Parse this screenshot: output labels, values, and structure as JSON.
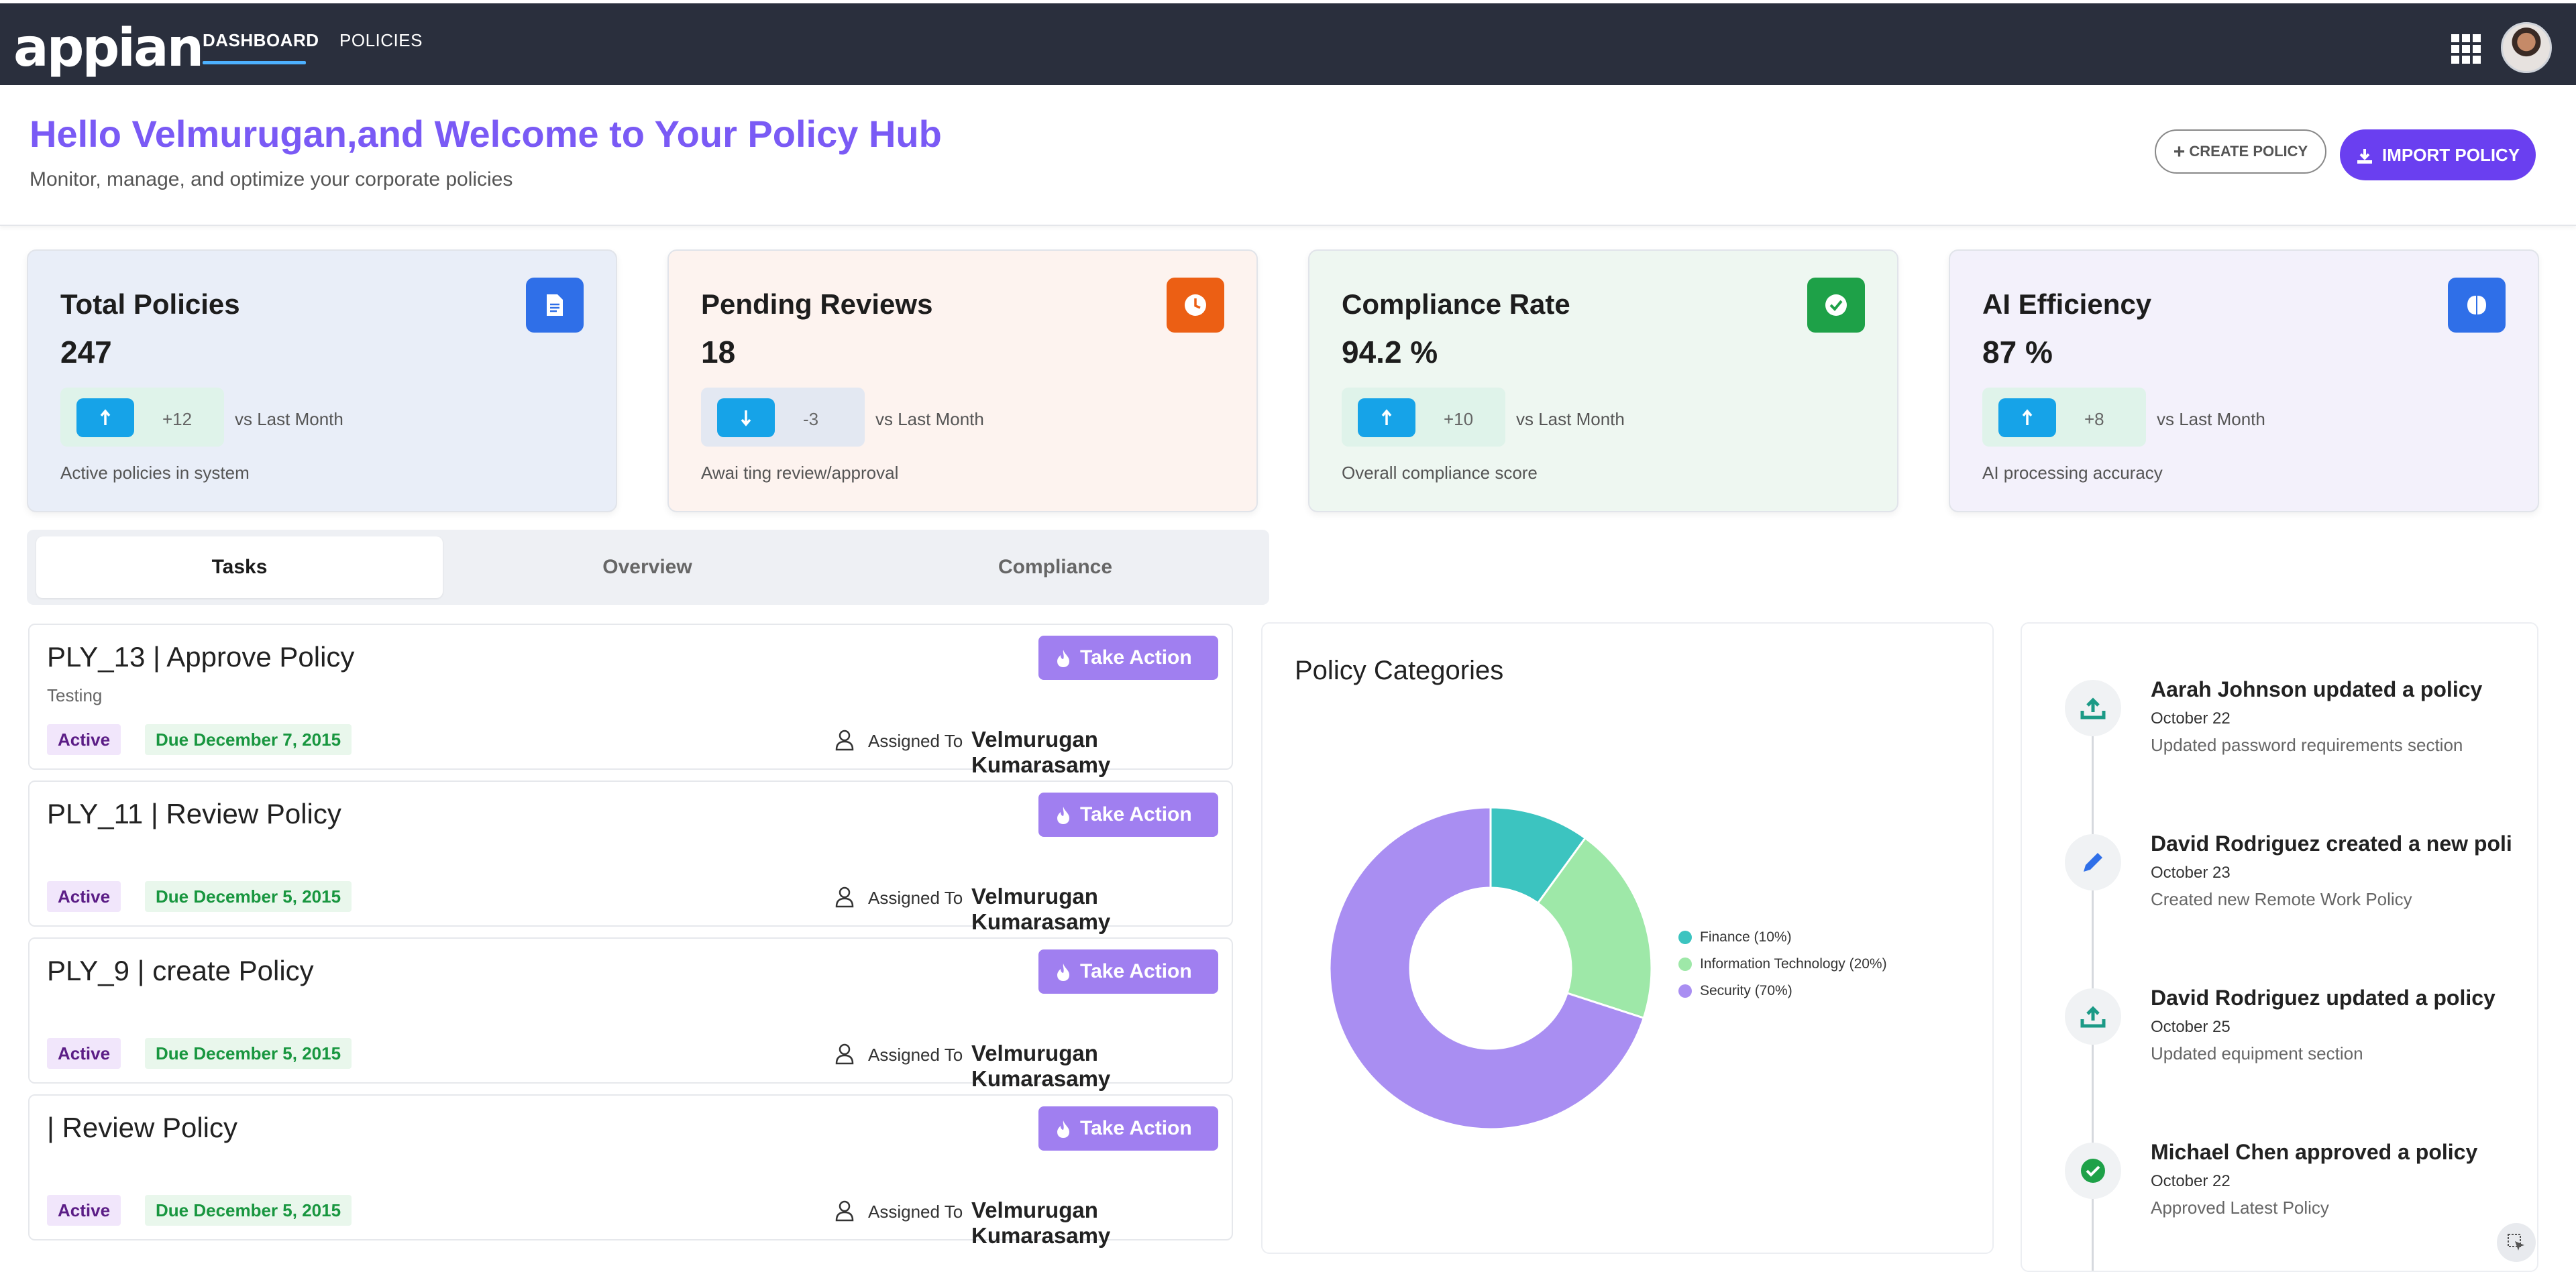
{
  "app": {
    "logo": "appian",
    "nav": [
      {
        "label": "DASHBOARD",
        "active": true
      },
      {
        "label": "POLICIES",
        "active": false
      }
    ],
    "icons": {
      "apps": "grid-icon",
      "avatar": "user-avatar"
    }
  },
  "header": {
    "greeting": "Hello Velmurugan,and Welcome to Your Policy Hub",
    "subtitle": "Monitor, manage, and optimize your corporate policies",
    "create_label": "CREATE POLICY",
    "import_label": "IMPORT POLICY"
  },
  "stats": [
    {
      "title": "Total Policies",
      "value": "247",
      "delta": "+12",
      "trend": "up",
      "vs": "vs Last Month",
      "desc": "Active policies in system",
      "icon": "document-icon",
      "icon_color": "#2f6fe8",
      "bg": "#e9eef8",
      "trend_bg": "#dff3ea"
    },
    {
      "title": "Pending Reviews",
      "value": "18",
      "delta": "-3",
      "trend": "down",
      "vs": "vs Last Month",
      "desc": "Awai ting review/approval",
      "icon": "clock-icon",
      "icon_color": "#ec5f14",
      "bg": "#fdf3ef",
      "trend_bg": "#e3e8f2"
    },
    {
      "title": "Compliance Rate",
      "value": "94.2 %",
      "delta": "+10",
      "trend": "up",
      "vs": "vs Last Month",
      "desc": "Overall compliance score",
      "icon": "check-circle-icon",
      "icon_color": "#1ea148",
      "bg": "#eef7f1",
      "trend_bg": "#dff3ea"
    },
    {
      "title": "AI Efficiency",
      "value": "87 %",
      "delta": "+8",
      "trend": "up",
      "vs": "vs Last Month",
      "desc": "AI processing accuracy",
      "icon": "brain-icon",
      "icon_color": "#2f6fe8",
      "bg": "#f3f1fb",
      "trend_bg": "#dff3ea"
    }
  ],
  "tabs": [
    {
      "label": "Tasks",
      "active": true
    },
    {
      "label": "Overview",
      "active": false
    },
    {
      "label": "Compliance",
      "active": false
    }
  ],
  "tasks": [
    {
      "title": "PLY_13 | Approve Policy",
      "subtitle": "Testing",
      "status": "Active",
      "due": "Due December 7, 2015",
      "assigned_label": "Assigned To",
      "assignee": "Velmurugan Kumarasamy",
      "action": "Take Action"
    },
    {
      "title": "PLY_11 | Review Policy",
      "subtitle": "",
      "status": "Active",
      "due": "Due December 5, 2015",
      "assigned_label": "Assigned To",
      "assignee": "Velmurugan Kumarasamy",
      "action": "Take Action"
    },
    {
      "title": "PLY_9 | create Policy",
      "subtitle": "",
      "status": "Active",
      "due": "Due December 5, 2015",
      "assigned_label": "Assigned To",
      "assignee": "Velmurugan Kumarasamy",
      "action": "Take Action"
    },
    {
      "title": "| Review Policy",
      "subtitle": "",
      "status": "Active",
      "due": "Due December 5, 2015",
      "assigned_label": "Assigned To",
      "assignee": "Velmurugan Kumarasamy",
      "action": "Take Action"
    }
  ],
  "categories": {
    "title": "Policy Categories"
  },
  "chart_data": {
    "type": "pie",
    "donut": true,
    "title": "Policy Categories",
    "categories": [
      "Finance",
      "Information Technology",
      "Security"
    ],
    "values": [
      10,
      20,
      70
    ],
    "legend_labels": [
      "Finance (10%)",
      "Information Technology (20%)",
      "Security (70%)"
    ],
    "colors": [
      "#3cc4c0",
      "#9ee8a8",
      "#a98ef2"
    ],
    "legend_position": "right"
  },
  "activity": [
    {
      "title": "Aarah Johnson updated a policy",
      "date": "October 22",
      "desc": "Updated password requirements section",
      "icon": "upload-icon"
    },
    {
      "title": "David Rodriguez created a new poli...",
      "date": "October 23",
      "desc": "Created new Remote Work Policy",
      "icon": "pencil-icon"
    },
    {
      "title": "David Rodriguez updated a policy",
      "date": "October 25",
      "desc": "Updated equipment section",
      "icon": "upload-icon"
    },
    {
      "title": "Michael Chen approved a policy",
      "date": "October 22",
      "desc": "Approved Latest Policy",
      "icon": "check-circle-icon"
    }
  ],
  "colors": {
    "accent": "#7a5af5",
    "nav_bg": "#2a2f3d",
    "action": "#a07ff0",
    "teal": "#1b9a86"
  }
}
